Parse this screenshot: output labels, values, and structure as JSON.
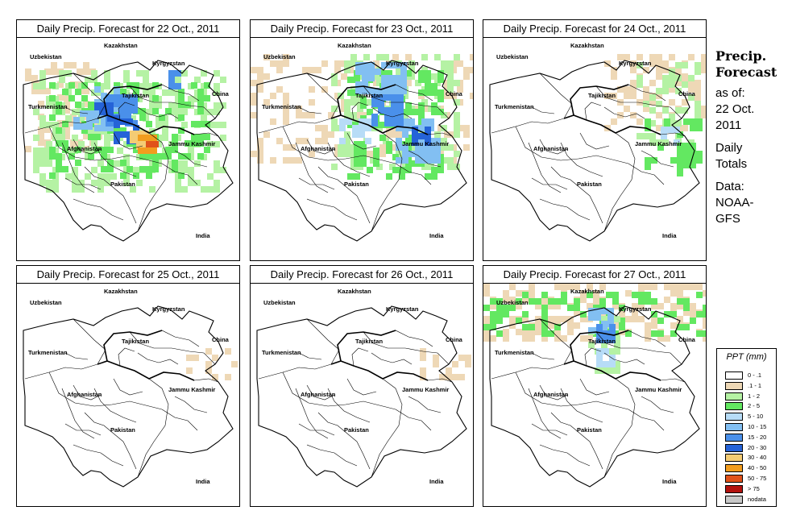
{
  "panels": [
    {
      "title": "Daily Precip. Forecast for  22 Oct., 2011",
      "intensity": "heavy"
    },
    {
      "title": "Daily Precip. Forecast for  23 Oct., 2011",
      "intensity": "moderate"
    },
    {
      "title": "Daily Precip. Forecast for  24 Oct., 2011",
      "intensity": "light"
    },
    {
      "title": "Daily Precip. Forecast for  25 Oct., 2011",
      "intensity": "trace"
    },
    {
      "title": "Daily Precip. Forecast for  26 Oct., 2011",
      "intensity": "trace"
    },
    {
      "title": "Daily Precip. Forecast for  27 Oct., 2011",
      "intensity": "north"
    }
  ],
  "map_labels": {
    "kazakhstan": "Kazakhstan",
    "uzbekistan": "Uzbekistan",
    "kyrgyzstan": "Kyrgyzstan",
    "tajikistan": "Tajikistan",
    "turkmenistan": "Turkmenistan",
    "china": "China",
    "afghanistan": "Afghanistan",
    "jammu_kashmir": "Jammu Kashmir",
    "pakistan": "Pakistan",
    "india": "India"
  },
  "sidebar": {
    "title_line1": "Precip.",
    "title_line2": "Forecast",
    "asof_line1": "as of:",
    "asof_line2": "22 Oct.",
    "asof_line3": "2011",
    "daily_line1": "Daily",
    "daily_line2": "Totals",
    "data_line1": "Data:",
    "data_line2": "NOAA-",
    "data_line3": "GFS"
  },
  "legend": {
    "title": "PPT (mm)",
    "classes": [
      {
        "label": "0 - .1",
        "color": "#ffffff"
      },
      {
        "label": ".1 - 1",
        "color": "#eed8b6"
      },
      {
        "label": "1 - 2",
        "color": "#b5f2a4"
      },
      {
        "label": "2 - 5",
        "color": "#63e861"
      },
      {
        "label": "5 - 10",
        "color": "#b7dcf7"
      },
      {
        "label": "10 - 15",
        "color": "#82bff2"
      },
      {
        "label": "15 - 20",
        "color": "#4a90ea"
      },
      {
        "label": "20 - 30",
        "color": "#2563d8"
      },
      {
        "label": "30 - 40",
        "color": "#f4cc74"
      },
      {
        "label": "40 - 50",
        "color": "#f29d1e"
      },
      {
        "label": "50 - 75",
        "color": "#e0521a"
      },
      {
        "label": "> 75",
        "color": "#b3120e"
      },
      {
        "label": "nodata",
        "color": "#c8c8c8"
      }
    ]
  }
}
